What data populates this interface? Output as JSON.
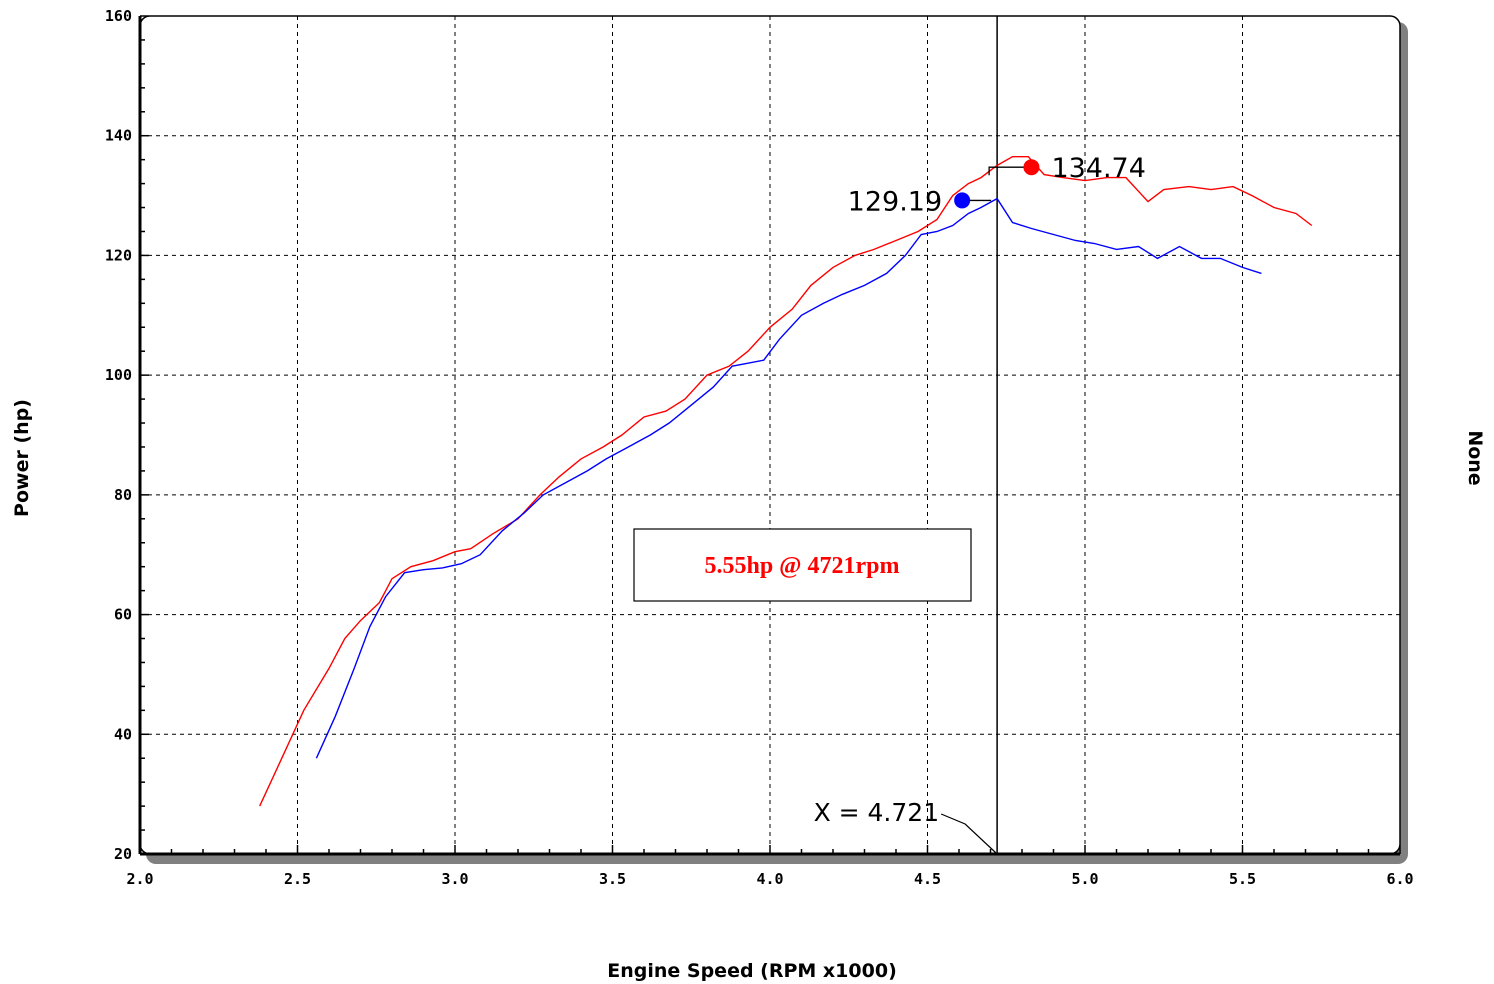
{
  "chart_data": {
    "type": "line",
    "xlabel": "Engine Speed (RPM x1000)",
    "ylabel": "Power (hp)",
    "y2label": "None",
    "xlim": [
      2.0,
      6.0
    ],
    "ylim": [
      20,
      160
    ],
    "xticks": [
      2.0,
      2.5,
      3.0,
      3.5,
      4.0,
      4.5,
      5.0,
      5.5,
      6.0
    ],
    "xtick_labels": [
      "2.0",
      "2.5",
      "3.0",
      "3.5",
      "4.0",
      "4.5",
      "5.0",
      "5.5",
      "6.0"
    ],
    "yticks": [
      20,
      40,
      60,
      80,
      100,
      120,
      140,
      160
    ],
    "ytick_labels": [
      "20",
      "40",
      "60",
      "80",
      "100",
      "120",
      "140",
      "160"
    ],
    "grid": true,
    "series": [
      {
        "color": "#ff0000",
        "x": [
          2.38,
          2.45,
          2.52,
          2.6,
          2.65,
          2.7,
          2.76,
          2.8,
          2.86,
          2.93,
          3.0,
          3.05,
          3.12,
          3.2,
          3.27,
          3.33,
          3.4,
          3.47,
          3.53,
          3.6,
          3.67,
          3.73,
          3.8,
          3.87,
          3.93,
          4.0,
          4.07,
          4.13,
          4.2,
          4.27,
          4.33,
          4.4,
          4.47,
          4.53,
          4.58,
          4.63,
          4.67,
          4.72,
          4.77,
          4.82,
          4.87,
          4.93,
          5.0,
          5.07,
          5.13,
          5.2,
          5.25,
          5.33,
          5.4,
          5.47,
          5.53,
          5.6,
          5.67,
          5.72
        ],
        "y": [
          28,
          36,
          44,
          51,
          56,
          59,
          62,
          66,
          68,
          69,
          70.5,
          71,
          73.5,
          76,
          80,
          83,
          86,
          88,
          90,
          93,
          94,
          96,
          100,
          101.5,
          104,
          108,
          111,
          115,
          118,
          120,
          121,
          122.5,
          124,
          126,
          130,
          132,
          133,
          135,
          136.5,
          136.5,
          133.5,
          133,
          132.5,
          133,
          133,
          129,
          131,
          131.5,
          131,
          131.5,
          130,
          128,
          127,
          125
        ]
      },
      {
        "color": "#0000ff",
        "x": [
          2.56,
          2.62,
          2.68,
          2.73,
          2.78,
          2.84,
          2.9,
          2.96,
          3.02,
          3.08,
          3.15,
          3.22,
          3.28,
          3.35,
          3.42,
          3.48,
          3.55,
          3.62,
          3.68,
          3.75,
          3.82,
          3.88,
          3.93,
          3.98,
          4.03,
          4.1,
          4.17,
          4.23,
          4.3,
          4.37,
          4.43,
          4.48,
          4.53,
          4.58,
          4.63,
          4.67,
          4.721,
          4.77,
          4.83,
          4.9,
          4.97,
          5.03,
          5.1,
          5.17,
          5.23,
          5.3,
          5.37,
          5.43,
          5.5,
          5.56
        ],
        "y": [
          36,
          43,
          51,
          58,
          63,
          67,
          67.5,
          67.8,
          68.5,
          70,
          74,
          77,
          80,
          82,
          84,
          86,
          88,
          90,
          92,
          95,
          98,
          101.5,
          102,
          102.5,
          106,
          110,
          112,
          113.5,
          115,
          117,
          120,
          123.5,
          124,
          125,
          127,
          128,
          129.5,
          125.5,
          124.5,
          123.5,
          122.5,
          122,
          121,
          121.5,
          119.5,
          121.5,
          119.5,
          119.5,
          118,
          117
        ]
      }
    ],
    "peaks": [
      {
        "label": "134.74",
        "x": 4.83,
        "y": 134.74,
        "color": "#ff0000"
      },
      {
        "label": "129.19",
        "x": 4.61,
        "y": 129.19,
        "color": "#0000ff"
      }
    ],
    "cursor": {
      "x": 4.721,
      "label": "X = 4.721"
    },
    "annotation": {
      "text": "5.55hp @ 4721rpm",
      "color": "#ff0000"
    }
  }
}
